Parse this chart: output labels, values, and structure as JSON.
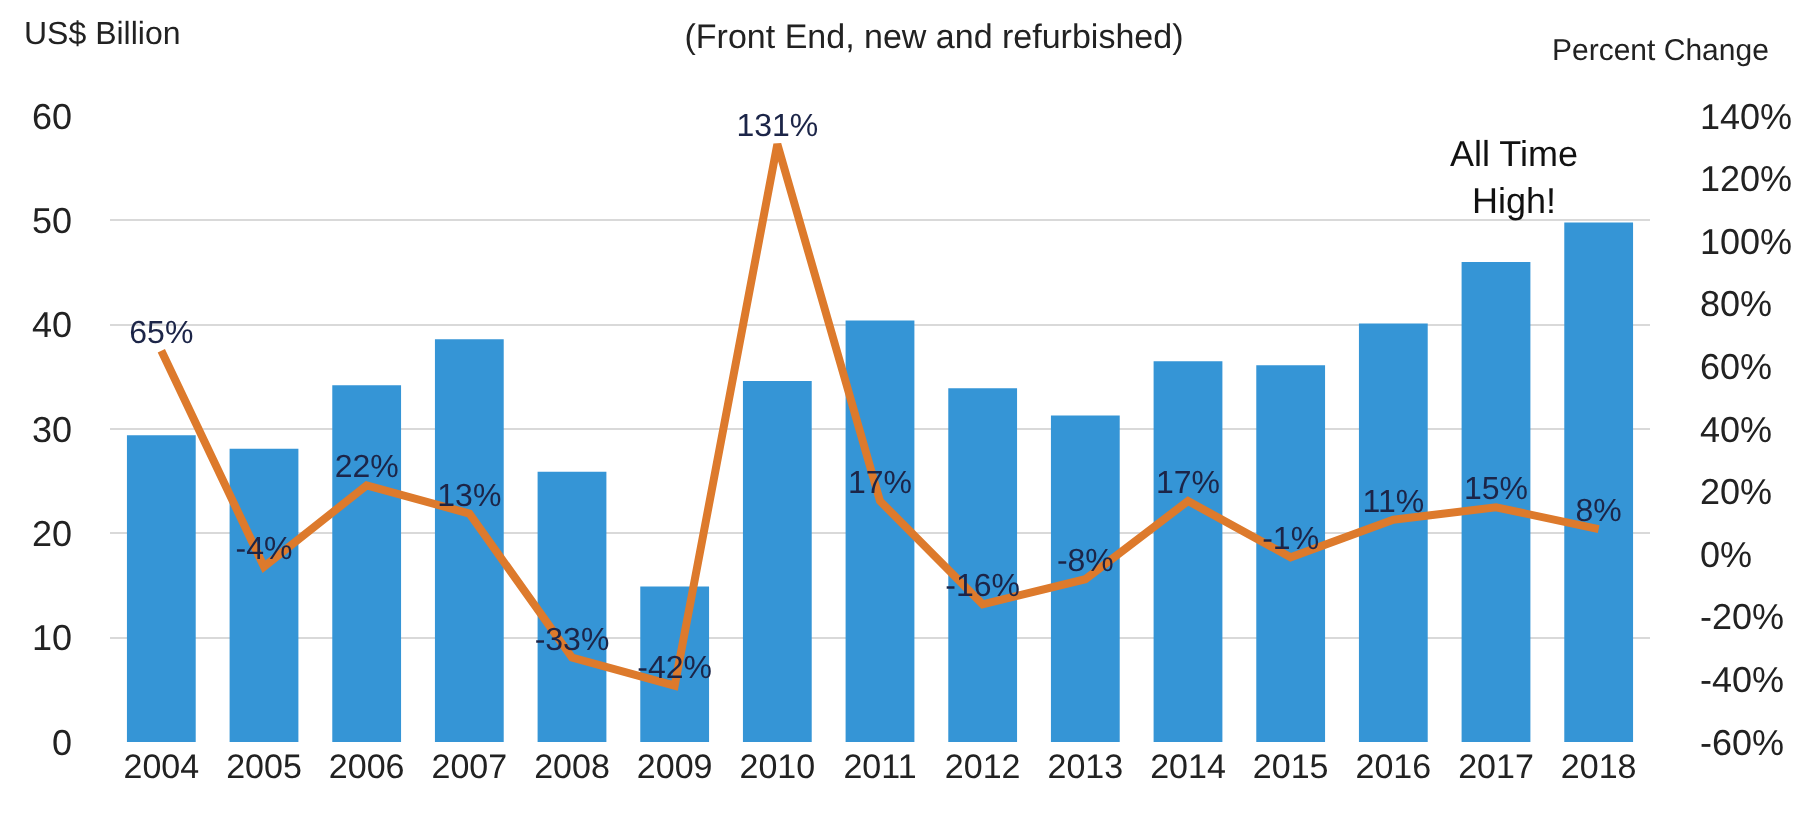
{
  "chart_data": {
    "type": "bar",
    "title": "(Front End, new and refurbished)",
    "ylabel": "US$ Billion",
    "y2label": "Percent Change",
    "categories": [
      "2004",
      "2005",
      "2006",
      "2007",
      "2008",
      "2009",
      "2010",
      "2011",
      "2012",
      "2013",
      "2014",
      "2015",
      "2016",
      "2017",
      "2018"
    ],
    "series": [
      {
        "color": "#3595d6",
        "values": [
          29.4,
          28.1,
          34.2,
          38.6,
          25.9,
          14.9,
          34.6,
          40.4,
          33.9,
          31.3,
          36.5,
          36.1,
          40.1,
          46.0,
          49.8
        ]
      },
      {
        "type": "line",
        "axis": "y2",
        "color": "#dd7a2c",
        "values": [
          65,
          -4,
          22,
          13,
          -33,
          -42,
          131,
          17,
          -16,
          -8,
          17,
          -1,
          11,
          15,
          8
        ],
        "value_labels": [
          "65%",
          "-4%",
          "22%",
          "13%",
          "-33%",
          "-42%",
          "131%",
          "17%",
          "-16%",
          "-8%",
          "17%",
          "-1%",
          "11%",
          "15%",
          "8%"
        ]
      }
    ],
    "ylim": [
      0,
      60
    ],
    "yticks": [
      0,
      10,
      20,
      30,
      40,
      50,
      60
    ],
    "y2lim": [
      -60,
      140
    ],
    "y2ticks": [
      {
        "value": -60,
        "label": "-60%"
      },
      {
        "value": -40,
        "label": "-40%"
      },
      {
        "value": -20,
        "label": "-20%"
      },
      {
        "value": 0,
        "label": "0%"
      },
      {
        "value": 20,
        "label": "20%"
      },
      {
        "value": 40,
        "label": "40%"
      },
      {
        "value": 60,
        "label": "60%"
      },
      {
        "value": 80,
        "label": "80%"
      },
      {
        "value": 100,
        "label": "100%"
      },
      {
        "value": 120,
        "label": "120%"
      },
      {
        "value": 140,
        "label": "140%"
      }
    ],
    "annotations": [
      "All Time\nHigh!"
    ],
    "grid": "y"
  }
}
